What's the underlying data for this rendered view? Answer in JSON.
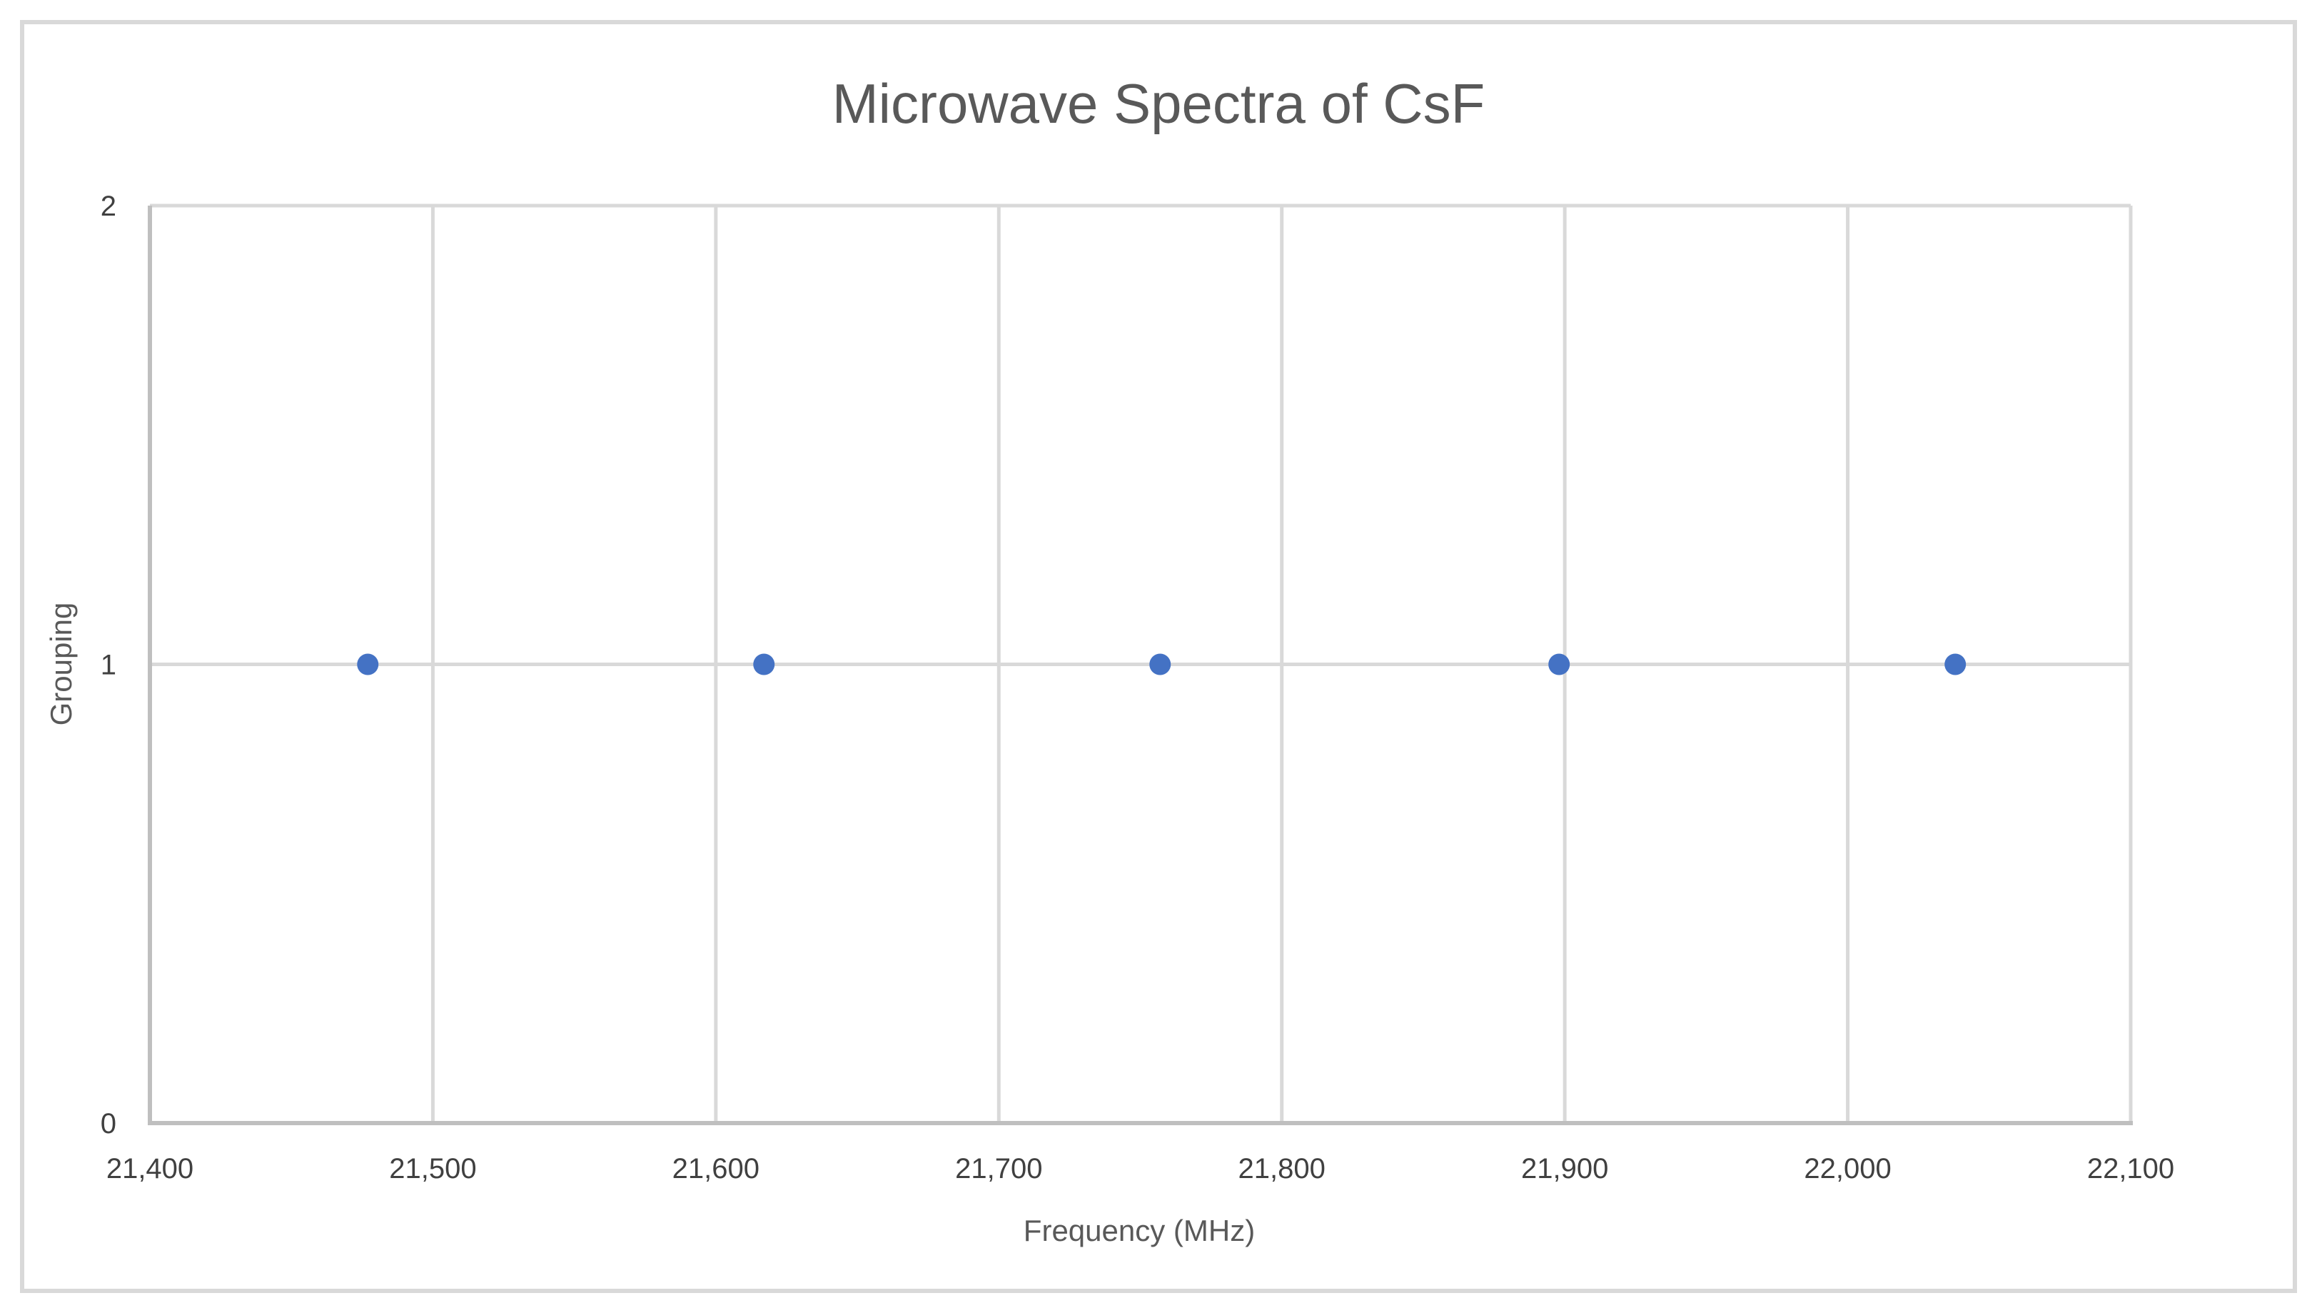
{
  "chart_data": {
    "type": "scatter",
    "title": "Microwave Spectra of CsF",
    "xlabel": "Frequency (MHz)",
    "ylabel": "Grouping",
    "xlim": [
      21400,
      22100
    ],
    "ylim": [
      0,
      2
    ],
    "x_ticks": [
      21400,
      21500,
      21600,
      21700,
      21800,
      21900,
      22000,
      22100
    ],
    "x_tick_labels": [
      "21,400",
      "21,500",
      "21,600",
      "21,700",
      "21,800",
      "21,900",
      "22,000",
      "22,100"
    ],
    "y_ticks": [
      0,
      1,
      2
    ],
    "y_tick_labels": [
      "0",
      "1",
      "2"
    ],
    "grid": true,
    "legend": "none",
    "series": [
      {
        "name": "Series1",
        "color": "#4472c4",
        "x": [
          21477,
          21617,
          21757,
          21898,
          22038
        ],
        "y": [
          1,
          1,
          1,
          1,
          1
        ]
      }
    ]
  }
}
